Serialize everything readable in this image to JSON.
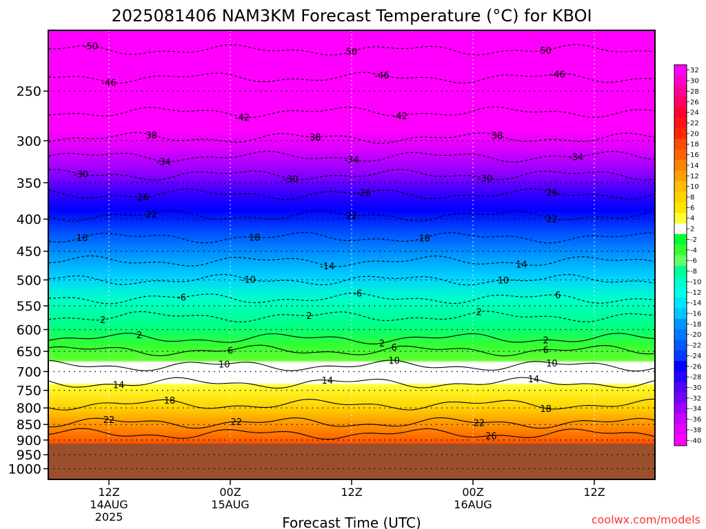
{
  "chart_data": {
    "type": "heatmap",
    "title": "2025081406 NAM3KM Forecast Temperature (°C) for KBOI",
    "xlabel": "Forecast Time (UTC)",
    "ylabel": "",
    "credit": "coolwx.com/models",
    "y_scale": "log-pressure",
    "y_range_hpa": [
      1040,
      200
    ],
    "y_ticks": [
      250,
      300,
      350,
      400,
      450,
      500,
      550,
      600,
      650,
      700,
      750,
      800,
      850,
      900,
      950,
      1000
    ],
    "x_range_hours": [
      -5,
      45
    ],
    "x_ticks": [
      {
        "hour": 0,
        "lines": [
          "12Z",
          "14AUG",
          "2025"
        ]
      },
      {
        "hour": 10,
        "lines": [
          "00Z",
          "15AUG"
        ]
      },
      {
        "hour": 20,
        "lines": [
          "12Z"
        ]
      },
      {
        "hour": 30,
        "lines": [
          "00Z",
          "16AUG"
        ]
      },
      {
        "hour": 40,
        "lines": [
          "12Z"
        ]
      }
    ],
    "grid": true,
    "surface_pressure_hpa": 912,
    "ground_color": "#9b4f2d",
    "colorbar": {
      "placement": "right",
      "labels": [
        32,
        30,
        28,
        26,
        24,
        22,
        20,
        18,
        16,
        14,
        12,
        10,
        8,
        6,
        4,
        2,
        -2,
        -4,
        -6,
        -8,
        -10,
        -12,
        -14,
        -16,
        -18,
        -20,
        -22,
        -24,
        -26,
        -28,
        -30,
        -32,
        -34,
        -36,
        -38,
        -40
      ],
      "colors": [
        "#ff00ff",
        "#ff00c8",
        "#ff0096",
        "#ff0064",
        "#ff0032",
        "#ff1414",
        "#ff2800",
        "#ff4b00",
        "#ff6400",
        "#ff8200",
        "#ffa000",
        "#ffbe00",
        "#ffd200",
        "#ffe600",
        "#ffff32",
        "#ffffff",
        "#00ff32",
        "#32ff32",
        "#64ff64",
        "#00ff96",
        "#00ffc8",
        "#00ffe6",
        "#00e6ff",
        "#00c8ff",
        "#0096ff",
        "#0078ff",
        "#005aff",
        "#003cff",
        "#0000ff",
        "#2800ff",
        "#5000ff",
        "#7800ff",
        "#a000ff",
        "#c800ff",
        "#e600ff",
        "#ff00ff"
      ]
    },
    "contours": [
      {
        "value": -50,
        "p": 215,
        "labels": [
          {
            "x": -1.5,
            "t": "-50"
          },
          {
            "x": 20.0,
            "t": "50"
          },
          {
            "x": 36.0,
            "t": "50"
          }
        ]
      },
      {
        "value": -46,
        "p": 238,
        "labels": [
          {
            "x": 0.0,
            "t": "-46"
          },
          {
            "x": 22.5,
            "t": "-46"
          },
          {
            "x": 37.0,
            "t": "-46"
          }
        ]
      },
      {
        "value": -42,
        "p": 270,
        "labels": [
          {
            "x": 11.0,
            "t": "-42"
          },
          {
            "x": 24.0,
            "t": "-42"
          }
        ]
      },
      {
        "value": -38,
        "p": 297,
        "labels": [
          {
            "x": 3.5,
            "t": "38"
          },
          {
            "x": 17.0,
            "t": "38"
          },
          {
            "x": 32.0,
            "t": "38"
          }
        ]
      },
      {
        "value": -34,
        "p": 318,
        "labels": [
          {
            "x": 4.5,
            "t": "-34"
          },
          {
            "x": 20.0,
            "t": "-34"
          },
          {
            "x": 38.5,
            "t": "-34"
          }
        ]
      },
      {
        "value": -30,
        "p": 340,
        "labels": [
          {
            "x": -2.3,
            "t": "-30"
          },
          {
            "x": 15.0,
            "t": "-30"
          },
          {
            "x": 31.0,
            "t": "-30"
          }
        ]
      },
      {
        "value": -26,
        "p": 365,
        "labels": [
          {
            "x": 2.8,
            "t": "26"
          },
          {
            "x": 21.0,
            "t": "-26"
          },
          {
            "x": 36.5,
            "t": "26"
          }
        ]
      },
      {
        "value": -22,
        "p": 395,
        "labels": [
          {
            "x": 3.5,
            "t": "22"
          },
          {
            "x": 20.0,
            "t": "22"
          },
          {
            "x": 36.5,
            "t": "22"
          }
        ]
      },
      {
        "value": -18,
        "p": 428,
        "labels": [
          {
            "x": -2.2,
            "t": "18"
          },
          {
            "x": 12.0,
            "t": "18"
          },
          {
            "x": 26.0,
            "t": "18"
          }
        ]
      },
      {
        "value": -14,
        "p": 467,
        "labels": [
          {
            "x": 18.0,
            "t": "-14"
          },
          {
            "x": 34.0,
            "t": "14"
          }
        ]
      },
      {
        "value": -10,
        "p": 500,
        "labels": [
          {
            "x": 11.5,
            "t": "-10"
          },
          {
            "x": 32.5,
            "t": "10"
          }
        ]
      },
      {
        "value": -6,
        "p": 535,
        "labels": [
          {
            "x": 6.0,
            "t": "-6"
          },
          {
            "x": 20.5,
            "t": "-6"
          },
          {
            "x": 37.0,
            "t": "6"
          }
        ]
      },
      {
        "value": -2,
        "p": 572,
        "labels": [
          {
            "x": -0.5,
            "t": "2"
          },
          {
            "x": 16.5,
            "t": "2"
          },
          {
            "x": 30.5,
            "t": "2"
          }
        ]
      },
      {
        "value": 2,
        "p": 620,
        "labels": [
          {
            "x": 2.5,
            "t": "2"
          },
          {
            "x": 22.5,
            "t": "2"
          },
          {
            "x": 36.0,
            "t": "2"
          }
        ]
      },
      {
        "value": 6,
        "p": 648,
        "labels": [
          {
            "x": 10.0,
            "t": "6"
          },
          {
            "x": 23.5,
            "t": "6"
          },
          {
            "x": 36.0,
            "t": "6"
          }
        ]
      },
      {
        "value": 10,
        "p": 685,
        "labels": [
          {
            "x": 9.5,
            "t": "10"
          },
          {
            "x": 23.5,
            "t": "10"
          },
          {
            "x": 36.5,
            "t": "10"
          }
        ]
      },
      {
        "value": 14,
        "p": 730,
        "labels": [
          {
            "x": 0.8,
            "t": "14"
          },
          {
            "x": 18.0,
            "t": "14"
          },
          {
            "x": 35.0,
            "t": "14"
          }
        ]
      },
      {
        "value": 18,
        "p": 790,
        "labels": [
          {
            "x": 5.0,
            "t": "18"
          },
          {
            "x": 36.0,
            "t": "18"
          }
        ]
      },
      {
        "value": 22,
        "p": 845,
        "labels": [
          {
            "x": 0.0,
            "t": "22"
          },
          {
            "x": 10.5,
            "t": "22"
          },
          {
            "x": 30.5,
            "t": "22"
          }
        ]
      },
      {
        "value": 26,
        "p": 880,
        "labels": [
          {
            "x": 31.5,
            "t": "26"
          }
        ]
      }
    ]
  }
}
